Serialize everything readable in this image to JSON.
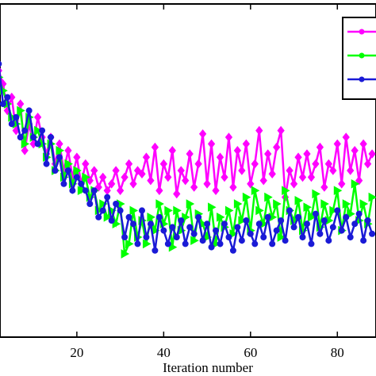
{
  "chart_data": {
    "type": "line",
    "xlabel": "Iteration number",
    "x": [
      2,
      3,
      4,
      5,
      6,
      7,
      8,
      9,
      10,
      11,
      12,
      13,
      14,
      15,
      16,
      17,
      18,
      19,
      20,
      21,
      22,
      23,
      24,
      25,
      26,
      27,
      28,
      29,
      30,
      31,
      32,
      33,
      34,
      35,
      36,
      37,
      38,
      39,
      40,
      41,
      42,
      43,
      44,
      45,
      46,
      47,
      48,
      49,
      50,
      51,
      52,
      53,
      54,
      55,
      56,
      57,
      58,
      59,
      60,
      61,
      62,
      63,
      64,
      65,
      66,
      67,
      68,
      69,
      70,
      71,
      72,
      73,
      74,
      75,
      76,
      77,
      78,
      79,
      80,
      81,
      82,
      83,
      84,
      85,
      86,
      87,
      88
    ],
    "series": [
      {
        "color": "#ff00ff",
        "marker": "diamond",
        "values": [
          80,
          76,
          68,
          72,
          62,
          70,
          56,
          64,
          58,
          66,
          60,
          55,
          60,
          52,
          58,
          50,
          56,
          48,
          54,
          46,
          52,
          47,
          50,
          45,
          48,
          44,
          46,
          50,
          44,
          48,
          52,
          46,
          50,
          49,
          54,
          47,
          57,
          44,
          52,
          48,
          56,
          43,
          50,
          47,
          55,
          45,
          52,
          61,
          46,
          58,
          44,
          54,
          48,
          60,
          45,
          56,
          50,
          58,
          46,
          52,
          62,
          47,
          55,
          49,
          57,
          62,
          42,
          50,
          46,
          54,
          48,
          55,
          48,
          52,
          57,
          45,
          52,
          50,
          58,
          46,
          60,
          50,
          56,
          47,
          58,
          52,
          55
        ]
      },
      {
        "color": "#00ff00",
        "marker": "triangle",
        "values": [
          78,
          74,
          70,
          66,
          64,
          68,
          58,
          66,
          60,
          62,
          58,
          54,
          58,
          50,
          56,
          48,
          52,
          46,
          50,
          44,
          48,
          42,
          44,
          38,
          40,
          36,
          38,
          34,
          40,
          25,
          28,
          38,
          30,
          35,
          28,
          36,
          32,
          40,
          34,
          38,
          27,
          38,
          32,
          36,
          40,
          29,
          37,
          34,
          30,
          39,
          28,
          36,
          33,
          38,
          31,
          40,
          35,
          42,
          32,
          44,
          38,
          34,
          42,
          36,
          40,
          30,
          44,
          38,
          35,
          41,
          32,
          39,
          36,
          43,
          33,
          40,
          35,
          38,
          44,
          32,
          40,
          37,
          46,
          35,
          40,
          34,
          42
        ]
      },
      {
        "color": "#1a1ad6",
        "marker": "circle",
        "values": [
          82,
          70,
          72,
          64,
          66,
          60,
          62,
          68,
          60,
          58,
          62,
          52,
          60,
          50,
          54,
          46,
          50,
          44,
          48,
          46,
          44,
          40,
          44,
          36,
          38,
          42,
          35,
          40,
          38,
          30,
          36,
          34,
          28,
          38,
          30,
          34,
          26,
          36,
          32,
          28,
          33,
          30,
          35,
          28,
          33,
          31,
          36,
          29,
          34,
          27,
          32,
          28,
          34,
          30,
          26,
          33,
          29,
          35,
          31,
          28,
          34,
          30,
          36,
          28,
          32,
          35,
          29,
          38,
          33,
          36,
          30,
          34,
          28,
          37,
          31,
          35,
          29,
          33,
          38,
          32,
          36,
          30,
          34,
          37,
          29,
          35,
          31
        ]
      }
    ],
    "xlim": [
      2.3,
      88.9
    ],
    "ylim": [
      0,
      100
    ],
    "xticks": [
      20,
      40,
      60,
      80
    ]
  }
}
